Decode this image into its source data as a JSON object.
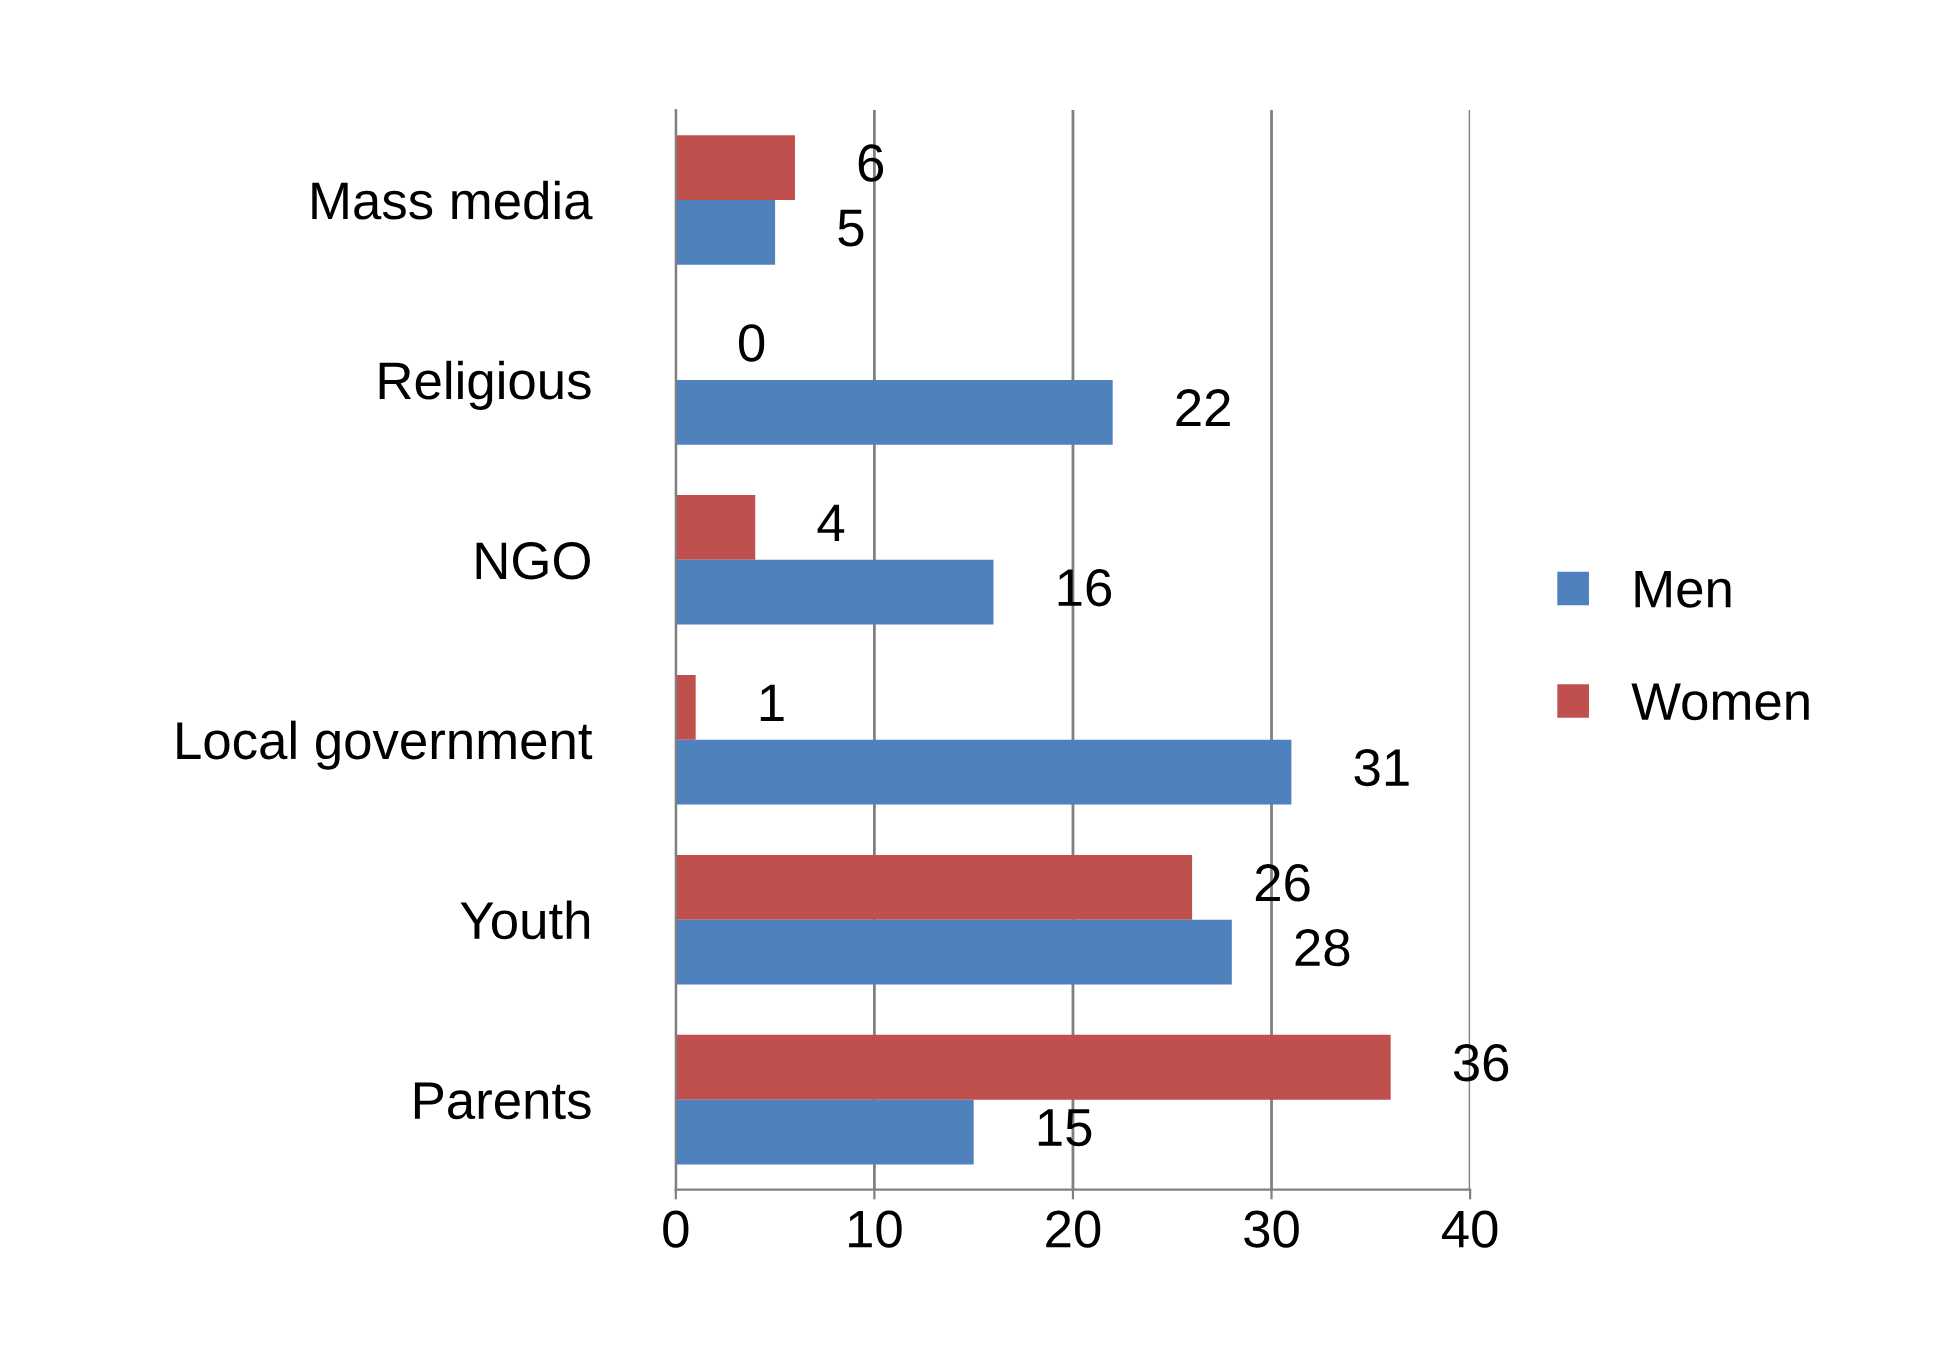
{
  "chart_data": {
    "type": "bar",
    "orientation": "horizontal",
    "categories": [
      "Mass media",
      "Religious",
      "NGO",
      "Local government",
      "Youth",
      "Parents"
    ],
    "series": [
      {
        "name": "Women",
        "color": "#c0504d",
        "values": [
          6,
          0,
          4,
          1,
          26,
          36
        ]
      },
      {
        "name": "Men",
        "color": "#4f81bd",
        "values": [
          5,
          22,
          16,
          31,
          28,
          15
        ]
      }
    ],
    "xlim": [
      0,
      40
    ],
    "xticks": [
      0,
      10,
      20,
      30,
      40
    ],
    "grid": "x",
    "legend": "right",
    "data_labels": true
  }
}
